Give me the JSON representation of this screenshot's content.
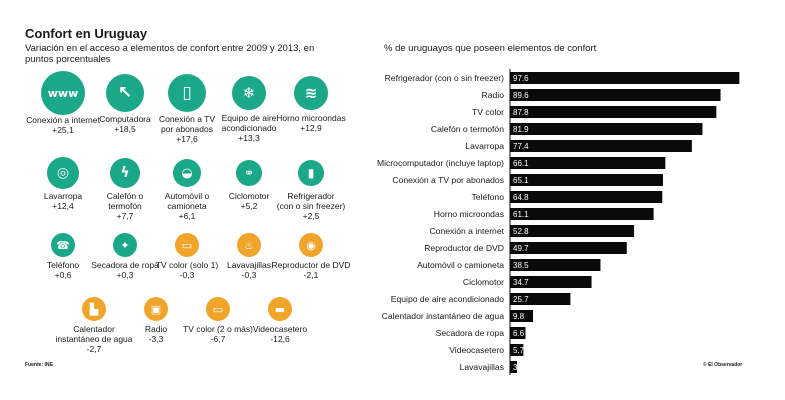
{
  "title": "Confort en Uruguay",
  "subtitle": "Variación en el acceso a elementos de confort entre 2009 y 2013, en puntos porcentuales",
  "right_title": "% de uruguayos que poseen elementos de confort",
  "source": "Fuente: INE",
  "credit": "© El Observador",
  "colors": {
    "positive": "#1aa889",
    "negative": "#f0a52a",
    "bar": "#0a0a0a"
  },
  "icon_items": [
    {
      "label": "Conexión a internet",
      "value": "+25,1",
      "icon": "www-icon",
      "glyph": "www"
    },
    {
      "label": "Computadora",
      "value": "+18,5",
      "icon": "cursor-icon",
      "glyph": "↖"
    },
    {
      "label": "Conexión a TV\npor abonados",
      "value": "+17,6",
      "icon": "remote-icon",
      "glyph": "▯"
    },
    {
      "label": "Equipo de aire\nacondicionado",
      "value": "+13,3",
      "icon": "air-conditioner-icon",
      "glyph": "❄"
    },
    {
      "label": "Horno microondas",
      "value": "+12,9",
      "icon": "microwave-icon",
      "glyph": "≋"
    },
    {
      "label": "Lavarropa",
      "value": "+12,4",
      "icon": "washing-machine-icon",
      "glyph": "◎"
    },
    {
      "label": "Calefón o\ntermofón",
      "value": "+7,7",
      "icon": "water-heater-icon",
      "glyph": "ϟ"
    },
    {
      "label": "Automóvil o\ncamioneta",
      "value": "+6,1",
      "icon": "car-icon",
      "glyph": "◒"
    },
    {
      "label": "Ciclomotor",
      "value": "+5,2",
      "icon": "moped-icon",
      "glyph": "⚭"
    },
    {
      "label": "Refrigerador\n(con o sin freezer)",
      "value": "+2,5",
      "icon": "fridge-icon",
      "glyph": "▮"
    },
    {
      "label": "Teléfono",
      "value": "+0,6",
      "icon": "telephone-icon",
      "glyph": "☎"
    },
    {
      "label": "Secadora de ropa",
      "value": "+0,3",
      "icon": "shirt-icon",
      "glyph": "✦"
    },
    {
      "label": "TV color (solo 1)",
      "value": "-0,3",
      "icon": "tv-icon",
      "glyph": "▭"
    },
    {
      "label": "Lavavajillas",
      "value": "-0,3",
      "icon": "dishwasher-icon",
      "glyph": "♨"
    },
    {
      "label": "Reproductor de DVD",
      "value": "-2,1",
      "icon": "dvd-icon",
      "glyph": "◉"
    },
    {
      "label": "Calentador\ninstantáneo de agua",
      "value": "-2,7",
      "icon": "kettle-icon",
      "glyph": "▙"
    },
    {
      "label": "Radio",
      "value": "-3,3",
      "icon": "radio-icon",
      "glyph": "▣"
    },
    {
      "label": "TV color (2 o más)",
      "value": "-6,7",
      "icon": "tv-icon",
      "glyph": "▭"
    },
    {
      "label": "Videocasetero",
      "value": "-12,6",
      "icon": "vcr-icon",
      "glyph": "▬"
    }
  ],
  "chart_data": {
    "type": "bar",
    "orientation": "horizontal",
    "title": "% de uruguayos que poseen elementos de confort",
    "categories": [
      "Refrigerador (con o sin freezer)",
      "Radio",
      "TV color",
      "Calefón o termofón",
      "Lavarropa",
      "Microcomputador (incluye laptop)",
      "Conexión a TV por abonados",
      "Teléfono",
      "Horno microondas",
      "Conexión a internet",
      "Reproductor de DVD",
      "Automóvil o camioneta",
      "Ciclomotor",
      "Equipo de aire acondicionado",
      "Calentador instantáneo de agua",
      "Secadora de ropa",
      "Videocasetero",
      "Lavavajillas"
    ],
    "values": [
      97.6,
      89.6,
      87.8,
      81.9,
      77.4,
      66.1,
      65.1,
      64.8,
      61.1,
      52.8,
      49.7,
      38.5,
      34.7,
      25.7,
      9.8,
      6.6,
      5.7,
      3
    ],
    "labels": [
      "97.6",
      "89.6",
      "87.8",
      "81.9",
      "77.4",
      "66.1",
      "65.1",
      "64.8",
      "61.1",
      "52.8",
      "49.7",
      "38.5",
      "34.7",
      "25.7",
      "9.8",
      "6.6",
      "5.7",
      "3."
    ],
    "xlim": [
      0,
      100
    ],
    "grid": false,
    "legend": "none"
  }
}
